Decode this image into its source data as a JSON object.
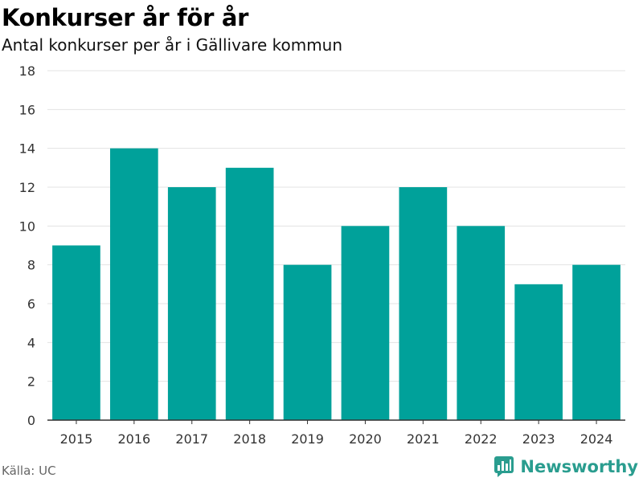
{
  "header": {
    "title": "Konkurser år för år",
    "subtitle": "Antal konkurser per år i Gällivare kommun"
  },
  "footer": {
    "source": "Källa: UC",
    "brand": "Newsworthy"
  },
  "colors": {
    "bar": "#00a19a",
    "grid": "#e3e3e3",
    "axis": "#333333",
    "brand": "#2a9d8f"
  },
  "chart_data": {
    "type": "bar",
    "categories": [
      "2015",
      "2016",
      "2017",
      "2018",
      "2019",
      "2020",
      "2021",
      "2022",
      "2023",
      "2024"
    ],
    "values": [
      9,
      14,
      12,
      13,
      8,
      10,
      12,
      10,
      7,
      8
    ],
    "ylim": [
      0,
      18
    ],
    "yticks": [
      0,
      2,
      4,
      6,
      8,
      10,
      12,
      14,
      16,
      18
    ],
    "grid": true
  }
}
